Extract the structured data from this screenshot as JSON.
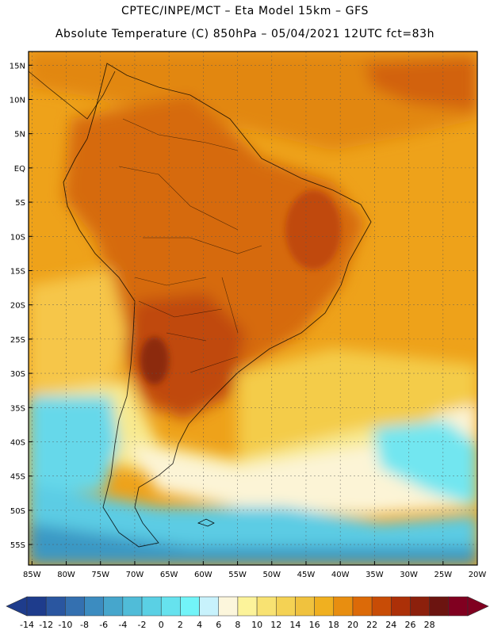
{
  "header": {
    "line1": "CPTEC/INPE/MCT –  Eta Model 15km – GFS",
    "line2": "Absolute Temperature (C) 850hPa – 05/04/2021 12UTC fct=83h"
  },
  "map": {
    "lat_labels": [
      "15N",
      "10N",
      "5N",
      "EQ",
      "5S",
      "10S",
      "15S",
      "20S",
      "25S",
      "30S",
      "35S",
      "40S",
      "45S",
      "50S",
      "55S"
    ],
    "lon_labels": [
      "85W",
      "80W",
      "75W",
      "70W",
      "65W",
      "60W",
      "55W",
      "50W",
      "45W",
      "40W",
      "35W",
      "30W",
      "25W",
      "20W"
    ],
    "lat_values": [
      15,
      10,
      5,
      0,
      -5,
      -10,
      -15,
      -20,
      -25,
      -30,
      -35,
      -40,
      -45,
      -50,
      -55
    ],
    "lon_values": [
      -85,
      -80,
      -75,
      -70,
      -65,
      -60,
      -55,
      -50,
      -45,
      -40,
      -35,
      -30,
      -25,
      -20
    ],
    "extent": {
      "lon_min": -85.5,
      "lon_max": -20,
      "lat_min": -58,
      "lat_max": 17
    },
    "grid": true
  },
  "legend": {
    "levels": [
      "-14",
      "-12",
      "-10",
      "-8",
      "-6",
      "-4",
      "-2",
      "0",
      "2",
      "4",
      "6",
      "8",
      "10",
      "12",
      "14",
      "16",
      "18",
      "20",
      "22",
      "24",
      "26",
      "28"
    ],
    "colors": [
      "#1e3c8c",
      "#2a56a0",
      "#3470b0",
      "#3c8cc0",
      "#46a6cc",
      "#50bcd8",
      "#5ad0e4",
      "#66e2ee",
      "#72f4f8",
      "#c8f2fc",
      "#fcf6dc",
      "#fcf39a",
      "#f8e272",
      "#f4d254",
      "#f0c23e",
      "#f0b020",
      "#e88e10",
      "#dc6a08",
      "#c84c06",
      "#ac3008",
      "#8c200c",
      "#6c1410",
      "#800020"
    ],
    "low_color": "#1e3c8c",
    "high_color": "#800020"
  }
}
